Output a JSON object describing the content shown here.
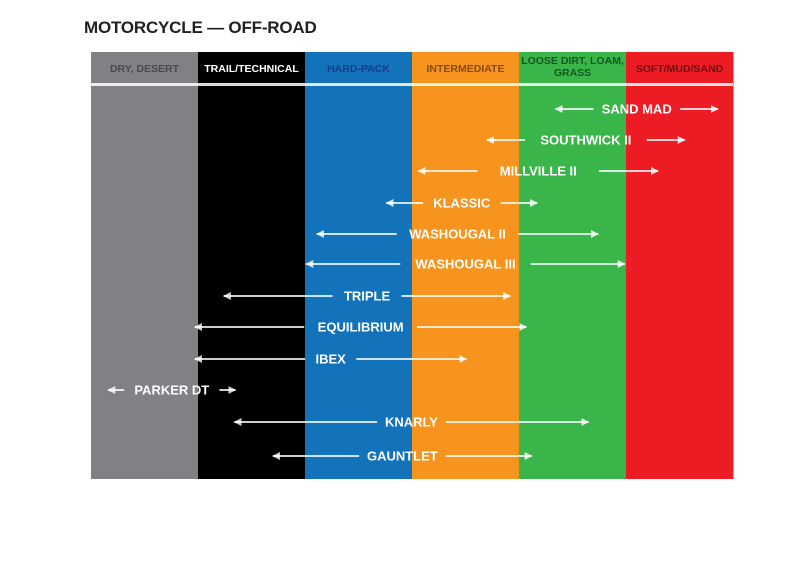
{
  "title": "MOTORCYCLE — OFF-ROAD",
  "chart_data": {
    "type": "range-bar",
    "categories": [
      {
        "label": "DRY, DESERT",
        "color": "#808184",
        "text_color": "#4a4a4a"
      },
      {
        "label": "TRAIL/TECHNICAL",
        "color": "#000000",
        "text_color": "#ffffff"
      },
      {
        "label": "HARD-PACK",
        "color": "#1273bb",
        "text_color": "#1b3a8c"
      },
      {
        "label": "INTERMEDIATE",
        "color": "#f7941d",
        "text_color": "#8b4a12"
      },
      {
        "label": "LOOSE DIRT, LOAM, GRASS",
        "color": "#39b54a",
        "text_color": "#17561f"
      },
      {
        "label": "SOFT/MUD/SAND",
        "color": "#ed1c24",
        "text_color": "#6e0e12"
      }
    ],
    "x_scale": "terrain categories, 0 = left edge of DRY, DESERT, 6 = right edge of SOFT/MUD/SAND",
    "series": [
      {
        "name": "SAND MAD",
        "start": 4.34,
        "end": 5.86
      },
      {
        "name": "SOUTHWICK II",
        "start": 3.7,
        "end": 5.55
      },
      {
        "name": "MILLVILLE II",
        "start": 3.06,
        "end": 5.3
      },
      {
        "name": "KLASSIC",
        "start": 2.76,
        "end": 4.17
      },
      {
        "name": "WASHOUGAL II",
        "start": 2.11,
        "end": 4.74
      },
      {
        "name": "WASHOUGAL III",
        "start": 2.01,
        "end": 4.99
      },
      {
        "name": "TRIPLE",
        "start": 1.24,
        "end": 3.92
      },
      {
        "name": "EQUILIBRIUM",
        "start": 0.97,
        "end": 4.07
      },
      {
        "name": "IBEX",
        "start": 0.97,
        "end": 3.51
      },
      {
        "name": "PARKER DT",
        "start": 0.16,
        "end": 1.35
      },
      {
        "name": "KNARLY",
        "start": 1.34,
        "end": 4.65
      },
      {
        "name": "GAUNTLET",
        "start": 1.7,
        "end": 4.12
      }
    ]
  }
}
